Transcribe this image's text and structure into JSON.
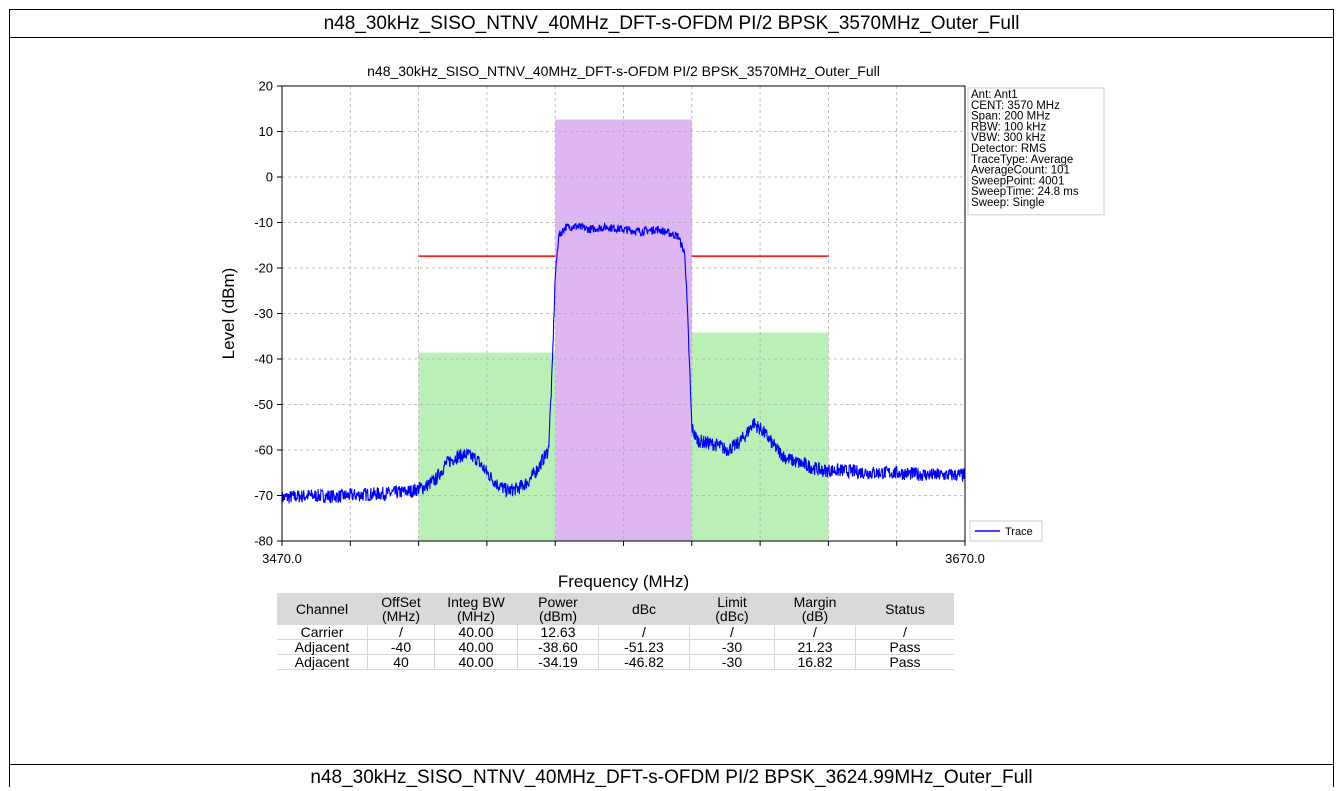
{
  "page": {
    "top_title": "n48_30kHz_SISO_NTNV_40MHz_DFT-s-OFDM PI/2 BPSK_3570MHz_Outer_Full",
    "bottom_title": "n48_30kHz_SISO_NTNV_40MHz_DFT-s-OFDM PI/2 BPSK_3624.99MHz_Outer_Full"
  },
  "chart_data": {
    "type": "line",
    "title": "n48_30kHz_SISO_NTNV_40MHz_DFT-s-OFDM PI/2 BPSK_3570MHz_Outer_Full",
    "xlabel": "Frequency (MHz)",
    "ylabel": "Level (dBm)",
    "xlim": [
      3470.0,
      3670.0
    ],
    "ylim": [
      -80,
      20
    ],
    "xticks": [
      3470.0,
      3670.0
    ],
    "yticks": [
      20,
      10,
      0,
      -10,
      -20,
      -30,
      -40,
      -50,
      -60,
      -70,
      -80
    ],
    "grid": true,
    "legend_placement": "lower-right",
    "series": [
      {
        "name": "Trace",
        "color": "#0000ff",
        "x": [
          3470,
          3478,
          3486,
          3494,
          3502,
          3508,
          3512,
          3515,
          3518,
          3521,
          3524,
          3527,
          3530,
          3533,
          3536,
          3539,
          3542,
          3545,
          3548,
          3549,
          3550,
          3551,
          3553,
          3556,
          3560,
          3565,
          3570,
          3575,
          3580,
          3584,
          3586,
          3588,
          3589,
          3590,
          3591,
          3592,
          3595,
          3598,
          3600,
          3603,
          3606,
          3608,
          3611,
          3614,
          3617,
          3620,
          3624,
          3628,
          3634,
          3642,
          3650,
          3660,
          3670
        ],
        "y": [
          -70.5,
          -70.0,
          -70.2,
          -69.8,
          -69.5,
          -69.0,
          -68.0,
          -66.5,
          -63.0,
          -61.5,
          -61.0,
          -62.0,
          -65.0,
          -67.5,
          -69.0,
          -68.5,
          -67.0,
          -64.0,
          -60.0,
          -45.0,
          -22.0,
          -13.0,
          -11.0,
          -10.8,
          -11.5,
          -11.0,
          -11.5,
          -12.0,
          -11.5,
          -12.5,
          -13.0,
          -17.0,
          -35.0,
          -55.0,
          -57.0,
          -58.0,
          -58.5,
          -59.0,
          -60.0,
          -59.0,
          -56.5,
          -54.0,
          -56.0,
          -59.0,
          -61.5,
          -62.5,
          -63.5,
          -64.5,
          -64.5,
          -65.0,
          -65.0,
          -65.5,
          -65.5
        ]
      }
    ],
    "bands": [
      {
        "name": "Carrier",
        "color": "#ddb6f2",
        "x0": 3550,
        "x1": 3590,
        "level": 12.63
      },
      {
        "name": "Adjacent",
        "color": "#b8f0b5",
        "x0": 3510,
        "x1": 3550,
        "level": -38.6
      },
      {
        "name": "Adjacent",
        "color": "#b8f0b5",
        "x0": 3590,
        "x1": 3630,
        "level": -34.19
      }
    ],
    "limit_lines": [
      {
        "color": "#ff0000",
        "x0": 3510,
        "x1": 3550,
        "y": -17.4
      },
      {
        "color": "#ff0000",
        "x0": 3590,
        "x1": 3630,
        "y": -17.4
      }
    ],
    "info_box": [
      "Ant: Ant1",
      "CENT: 3570 MHz",
      "Span: 200 MHz",
      "RBW: 100 kHz",
      "VBW: 300 kHz",
      "Detector: RMS",
      "TraceType: Average",
      "AverageCount: 101",
      "SweepPoint: 4001",
      "SweepTime: 24.8 ms",
      "Sweep: Single"
    ],
    "table": {
      "headers": [
        [
          "Channel"
        ],
        [
          "OffSet",
          "(MHz)"
        ],
        [
          "Integ BW",
          "(MHz)"
        ],
        [
          "Power",
          "(dBm)"
        ],
        [
          "dBc"
        ],
        [
          "Limit",
          "(dBc)"
        ],
        [
          "Margin",
          "(dB)"
        ],
        [
          "Status"
        ]
      ],
      "rows": [
        [
          "Carrier",
          "/",
          "40.00",
          "12.63",
          "/",
          "/",
          "/",
          "/"
        ],
        [
          "Adjacent",
          "-40",
          "40.00",
          "-38.60",
          "-51.23",
          "-30",
          "21.23",
          "Pass"
        ],
        [
          "Adjacent",
          "40",
          "40.00",
          "-34.19",
          "-46.82",
          "-30",
          "16.82",
          "Pass"
        ]
      ]
    }
  }
}
